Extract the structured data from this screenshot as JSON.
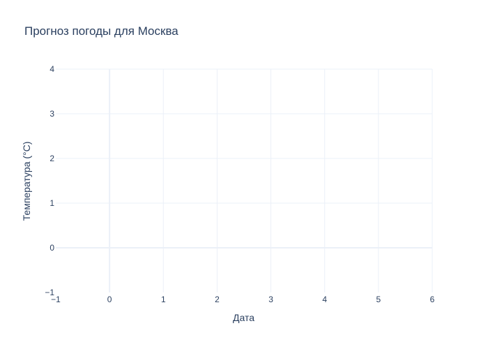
{
  "chart_data": {
    "type": "line",
    "title": "Прогноз погоды для Москва",
    "xlabel": "Дата",
    "ylabel": "Температура (°C)",
    "xlim": [
      -1,
      6
    ],
    "ylim": [
      -1,
      4
    ],
    "x_ticks": [
      -1,
      0,
      1,
      2,
      3,
      4,
      5,
      6
    ],
    "y_ticks": [
      -1,
      0,
      1,
      2,
      3,
      4
    ],
    "series": [],
    "grid": true,
    "legend": "none"
  }
}
